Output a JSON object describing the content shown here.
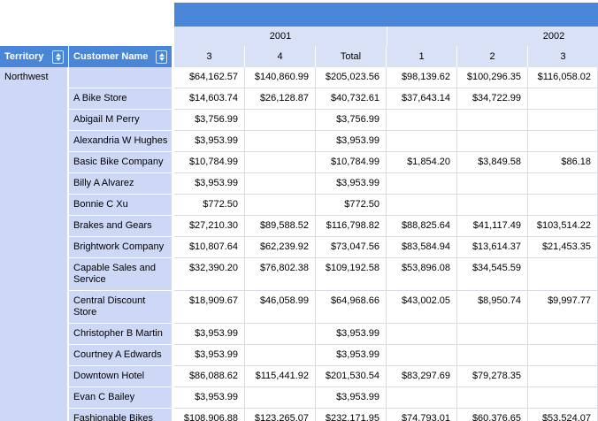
{
  "report": {
    "territory_group_label": "Northwest",
    "years_row": [
      {
        "label": "2001"
      },
      {
        "label": "2002"
      }
    ],
    "row_group_headers": [
      {
        "label": "Territory"
      },
      {
        "label": "Customer Name"
      }
    ],
    "column_headers": [
      "3",
      "4",
      "Total",
      "1",
      "2",
      "3"
    ],
    "rows": [
      {
        "customer": "",
        "values": [
          "$64,162.57",
          "$140,860.99",
          "$205,023.56",
          "$98,139.62",
          "$100,296.35",
          "$116,058.02"
        ]
      },
      {
        "customer": "A Bike Store",
        "values": [
          "$14,603.74",
          "$26,128.87",
          "$40,732.61",
          "$37,643.14",
          "$34,722.99",
          ""
        ]
      },
      {
        "customer": "Abigail M Perry",
        "values": [
          "$3,756.99",
          "",
          "$3,756.99",
          "",
          "",
          ""
        ]
      },
      {
        "customer": "Alexandria W Hughes",
        "values": [
          "$3,953.99",
          "",
          "$3,953.99",
          "",
          "",
          ""
        ]
      },
      {
        "customer": "Basic Bike Company",
        "values": [
          "$10,784.99",
          "",
          "$10,784.99",
          "$1,854.20",
          "$3,849.58",
          "$86.18"
        ]
      },
      {
        "customer": "Billy A Alvarez",
        "values": [
          "$3,953.99",
          "",
          "$3,953.99",
          "",
          "",
          ""
        ]
      },
      {
        "customer": "Bonnie C Xu",
        "values": [
          "$772.50",
          "",
          "$772.50",
          "",
          "",
          ""
        ]
      },
      {
        "customer": "Brakes and Gears",
        "values": [
          "$27,210.30",
          "$89,588.52",
          "$116,798.82",
          "$88,825.64",
          "$41,117.49",
          "$103,514.22"
        ]
      },
      {
        "customer": "Brightwork Company",
        "values": [
          "$10,807.64",
          "$62,239.92",
          "$73,047.56",
          "$83,584.94",
          "$13,614.37",
          "$21,453.35"
        ]
      },
      {
        "customer": "Capable Sales and Service",
        "values": [
          "$32,390.20",
          "$76,802.38",
          "$109,192.58",
          "$53,896.08",
          "$34,545.59",
          ""
        ]
      },
      {
        "customer": "Central Discount Store",
        "values": [
          "$18,909.67",
          "$46,058.99",
          "$64,968.66",
          "$43,002.05",
          "$8,950.74",
          "$9,997.77"
        ]
      },
      {
        "customer": "Christopher B Martin",
        "values": [
          "$3,953.99",
          "",
          "$3,953.99",
          "",
          "",
          ""
        ]
      },
      {
        "customer": "Courtney A Edwards",
        "values": [
          "$3,953.99",
          "",
          "$3,953.99",
          "",
          "",
          ""
        ]
      },
      {
        "customer": "Downtown Hotel",
        "values": [
          "$86,088.62",
          "$115,441.92",
          "$201,530.54",
          "$83,297.69",
          "$79,278.35",
          ""
        ]
      },
      {
        "customer": "Evan C Bailey",
        "values": [
          "$3,953.99",
          "",
          "$3,953.99",
          "",
          "",
          ""
        ]
      },
      {
        "customer": "Fashionable Bikes and Accessories",
        "values": [
          "$108,906.88",
          "$123,265.07",
          "$232,171.95",
          "$74,793.01",
          "$60,376.65",
          "$53,524.07"
        ]
      }
    ]
  },
  "colors": {
    "header_blue": "#4a86d8",
    "column_header_light_blue": "#d9e1f7",
    "row_label_lavender": "#ccd8f6",
    "grid_line": "#d8dbe6",
    "header_text": "#ffffff"
  }
}
